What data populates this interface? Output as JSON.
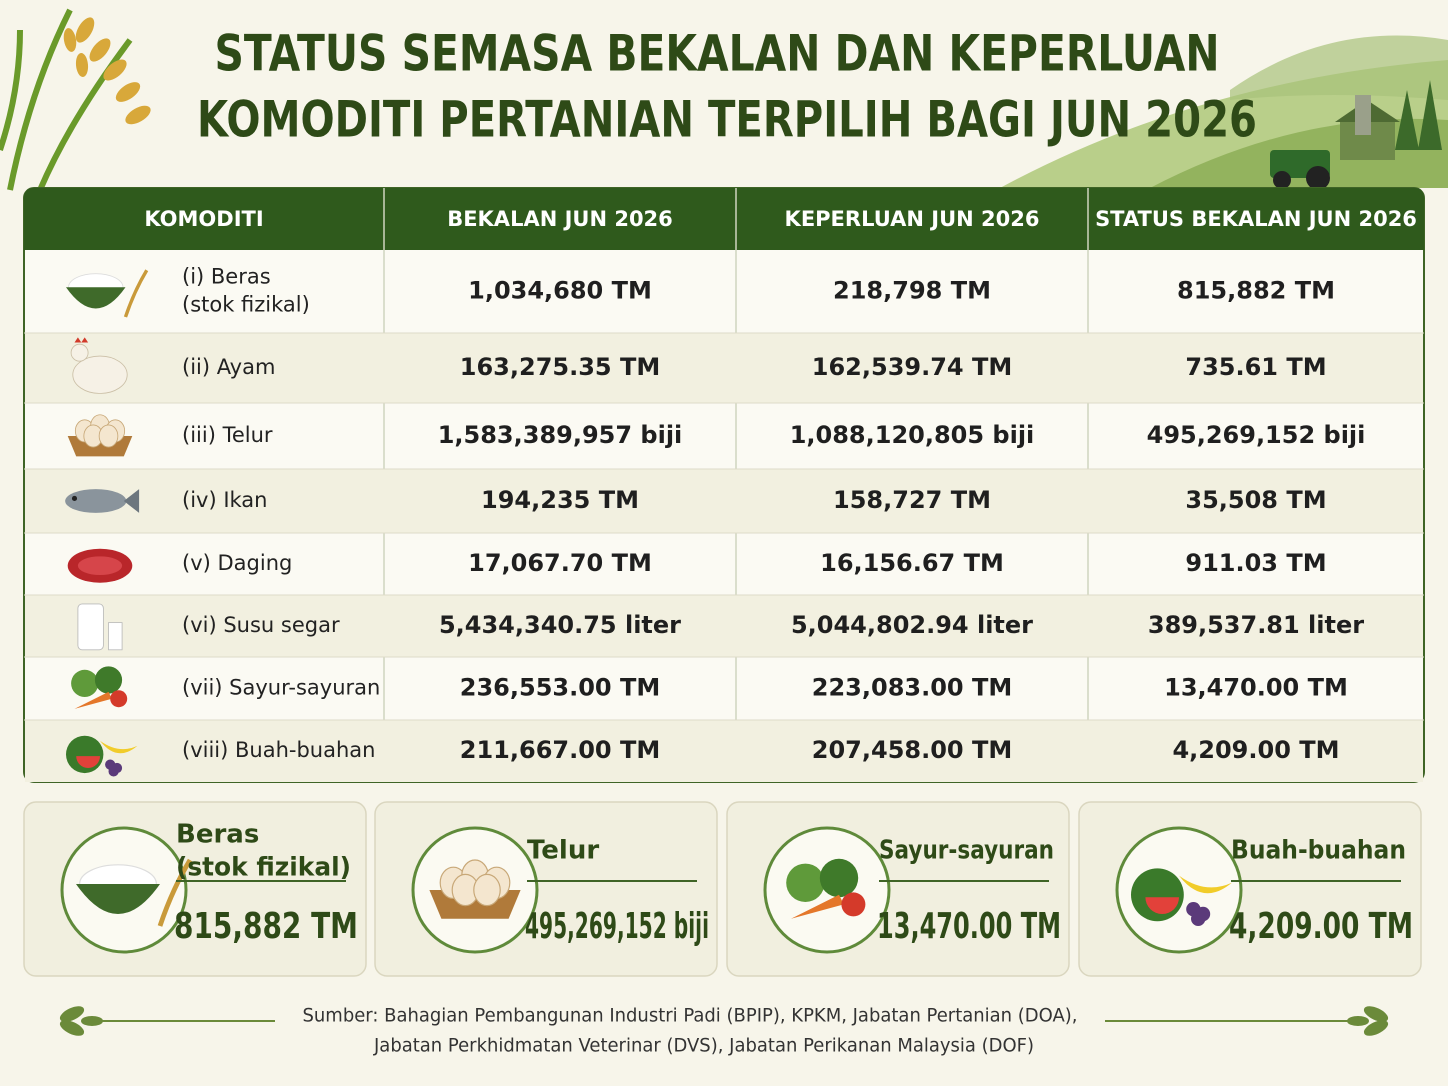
{
  "header": {
    "title_lines": [
      "STATUS SEMASA BEKALAN DAN KEPERLUAN",
      "KOMODITI PERTANIAN TERPILIH BAGI JUN 2026"
    ]
  },
  "table": {
    "columns": [
      "KOMODITI",
      "BEKALAN JUN 2026",
      "KEPERLUAN JUN 2026",
      "STATUS BEKALAN JUN 2026"
    ],
    "rows": [
      {
        "label_lines": [
          "(i) Beras",
          "(stok fizikal)"
        ],
        "cells": [
          "1,034,680 TM",
          "218,798 TM",
          "815,882 TM"
        ]
      },
      {
        "label_lines": [
          "(ii) Ayam"
        ],
        "cells": [
          "163,275.35 TM",
          "162,539.74 TM",
          "735.61 TM"
        ]
      },
      {
        "label_lines": [
          "(iii) Telur"
        ],
        "cells": [
          "1,583,389,957 biji",
          "1,088,120,805 biji",
          "495,269,152 biji"
        ]
      },
      {
        "label_lines": [
          "(iv) Ikan"
        ],
        "cells": [
          "194,235 TM",
          "158,727 TM",
          "35,508 TM"
        ]
      },
      {
        "label_lines": [
          "(v) Daging"
        ],
        "cells": [
          "17,067.70 TM",
          "16,156.67 TM",
          "911.03 TM"
        ]
      },
      {
        "label_lines": [
          "(vi) Susu segar"
        ],
        "cells": [
          "5,434,340.75 liter",
          "5,044,802.94 liter",
          "389,537.81 liter"
        ]
      },
      {
        "label_lines": [
          "(vii) Sayur-sayuran"
        ],
        "cells": [
          "236,553.00 TM",
          "223,083.00 TM",
          "13,470.00 TM"
        ]
      },
      {
        "label_lines": [
          "(viii) Buah-buahan"
        ],
        "cells": [
          "211,667.00 TM",
          "207,458.00 TM",
          "4,209.00 TM"
        ]
      }
    ]
  },
  "cards": [
    {
      "title_lines": [
        "Beras",
        "(stok fizikal)"
      ],
      "value": "815,882 TM"
    },
    {
      "title_lines": [
        "Telur"
      ],
      "value": "495,269,152 biji"
    },
    {
      "title_lines": [
        "Sayur-sayuran"
      ],
      "value": "13,470.00 TM"
    },
    {
      "title_lines": [
        "Buah-buahan"
      ],
      "value": "4,209.00 TM"
    }
  ],
  "source_lines": [
    "Sumber: Bahagian Pembangunan Industri Padi (BPIP), KPKM, Jabatan Pertanian (DOA),",
    "Jabatan Perkhidmatan Veterinar (DVS), Jabatan Perikanan Malaysia (DOF)"
  ]
}
